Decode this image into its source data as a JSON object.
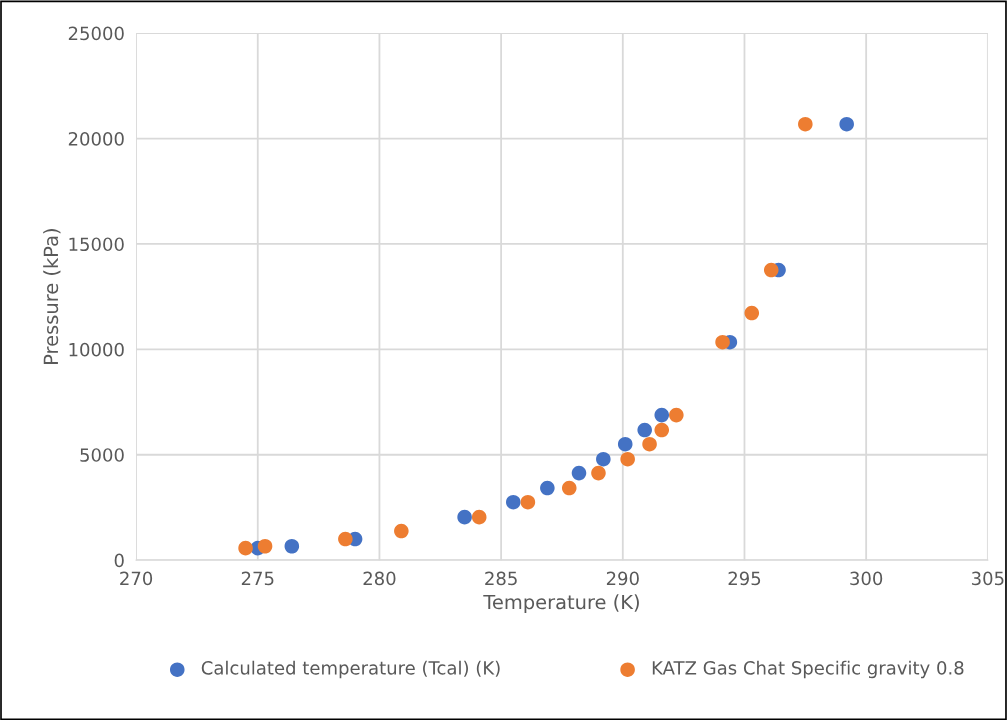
{
  "chart_data": {
    "type": "scatter",
    "xlabel": "Temperature (K)",
    "ylabel": "Pressure (kPa)",
    "xlim": [
      270,
      305
    ],
    "xticks": [
      270,
      275,
      280,
      285,
      290,
      295,
      300,
      305
    ],
    "ylim": [
      0,
      25000
    ],
    "yticks": [
      0,
      5000,
      10000,
      15000,
      20000,
      25000
    ],
    "grid": true,
    "legend": "bottom",
    "marker": "circle",
    "series": [
      {
        "name": "Calculated temperature (Tcal) (K)",
        "color": "#4472c4",
        "x": [
          275.0,
          276.4,
          279.0,
          280.9,
          283.5,
          285.5,
          286.9,
          288.2,
          289.2,
          290.1,
          290.9,
          291.6,
          294.4,
          295.2,
          296.4,
          299.2
        ],
        "values": [
          570,
          660,
          1000,
          null,
          2040,
          2750,
          3420,
          4130,
          4790,
          5500,
          6170,
          6880,
          10340,
          null,
          13760,
          20680
        ]
      },
      {
        "name": "KATZ Gas Chat Specific gravity 0.8",
        "color": "#ed7d31",
        "x": [
          274.5,
          275.3,
          278.6,
          280.9,
          284.1,
          286.1,
          287.8,
          289.0,
          290.2,
          291.1,
          291.6,
          292.2,
          294.1,
          295.3,
          296.1,
          297.5
        ],
        "values": [
          570,
          660,
          1000,
          1380,
          2040,
          2750,
          3420,
          4130,
          4790,
          5500,
          6170,
          6880,
          10340,
          11720,
          13760,
          20680
        ]
      }
    ]
  }
}
